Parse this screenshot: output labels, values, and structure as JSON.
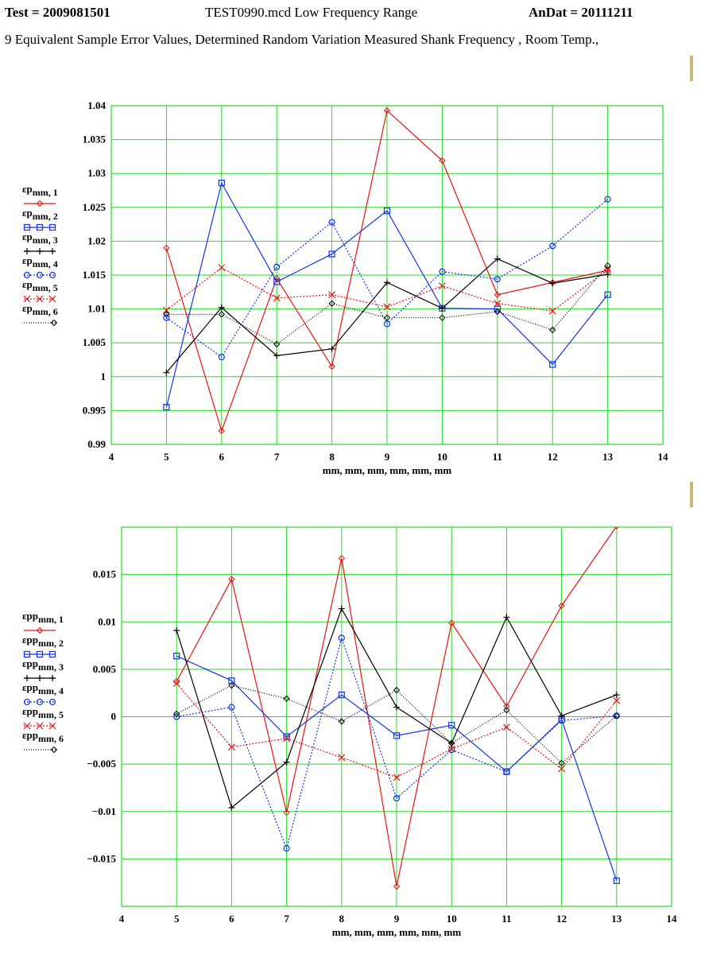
{
  "header": {
    "test": "Test = 2009081501",
    "file": "TEST0990.mcd  Low Frequency Range",
    "andat": "AnDat = 20111211",
    "subtitle": "9 Equivalent Sample Error Values, Determined  Random Variation Measured Shank Frequency , Room Temp.,"
  },
  "colors": {
    "grid": "#22dd22",
    "s1": "#ee1111",
    "s2": "#1133ee",
    "s3": "#000000",
    "s4": "#1133ee",
    "s5": "#ee1111",
    "s6": "#000000"
  },
  "chart_data": [
    {
      "type": "line",
      "xlabel": "mm, mm, mm, mm, mm, mm",
      "xlim": [
        4,
        14
      ],
      "ylim": [
        0.99,
        1.04
      ],
      "xticks": [
        4,
        5,
        6,
        7,
        8,
        9,
        10,
        11,
        12,
        13,
        14
      ],
      "yticks": [
        0.99,
        0.995,
        1,
        1.005,
        1.01,
        1.015,
        1.02,
        1.025,
        1.03,
        1.035,
        1.04
      ],
      "ytick_labels": [
        "0.99",
        "0.995",
        "1",
        "1.005",
        "1.01",
        "1.015",
        "1.02",
        "1.025",
        "1.03",
        "1.035",
        "1.04"
      ],
      "grid": true,
      "legend_placement": "left",
      "x": [
        5,
        6,
        7,
        8,
        9,
        10,
        11,
        12,
        13
      ],
      "series": [
        {
          "name": "εp",
          "sub": "mm, 1",
          "values": [
            1.019,
            0.992,
            1.0145,
            1.0015,
            1.0393,
            1.0319,
            1.0121,
            1.0139,
            1.0157
          ],
          "color": "#ee1111",
          "dash": "",
          "marker": "diamond"
        },
        {
          "name": "εp",
          "sub": "mm, 2",
          "values": [
            0.9955,
            1.0286,
            1.014,
            1.0181,
            1.0245,
            1.0101,
            1.01,
            1.0018,
            1.0121
          ],
          "color": "#1133ee",
          "dash": "",
          "marker": "square"
        },
        {
          "name": "εp",
          "sub": "mm, 3",
          "values": [
            1.0006,
            1.0102,
            1.0031,
            1.0041,
            1.0139,
            1.0101,
            1.0174,
            1.0138,
            1.0151
          ],
          "color": "#000000",
          "dash": "",
          "marker": "plus"
        },
        {
          "name": "εp",
          "sub": "mm, 4",
          "values": [
            1.0087,
            1.0029,
            1.0162,
            1.0228,
            1.0078,
            1.0155,
            1.0144,
            1.0193,
            1.0262
          ],
          "color": "#1133ee",
          "dash": "2,2",
          "marker": "circle"
        },
        {
          "name": "εp",
          "sub": "mm, 5",
          "values": [
            1.0098,
            1.0161,
            1.0116,
            1.0121,
            1.0103,
            1.0134,
            1.0108,
            1.0097,
            1.0158
          ],
          "color": "#ee1111",
          "dash": "2,2",
          "marker": "x"
        },
        {
          "name": "εp",
          "sub": "mm, 6",
          "values": [
            1.0092,
            1.0092,
            1.0048,
            1.0108,
            1.0087,
            1.0087,
            1.0096,
            1.0069,
            1.0164
          ],
          "color": "#000000",
          "dash": "1,2",
          "marker": "diamond"
        }
      ]
    },
    {
      "type": "line",
      "xlabel": "mm, mm, mm, mm, mm, mm",
      "xlim": [
        4,
        14
      ],
      "ylim": [
        -0.02,
        0.02
      ],
      "xticks": [
        4,
        5,
        6,
        7,
        8,
        9,
        10,
        11,
        12,
        13,
        14
      ],
      "yticks": [
        -0.015,
        -0.01,
        -0.005,
        0,
        0.005,
        0.01,
        0.015
      ],
      "ytick_labels": [
        "−0.015",
        "−0.01",
        "−0.005",
        "0",
        "0.005",
        "0.01",
        "0.015"
      ],
      "grid": true,
      "legend_placement": "left",
      "x": [
        5,
        6,
        7,
        8,
        9,
        10,
        11,
        12,
        13
      ],
      "series": [
        {
          "name": "εpp",
          "sub": "mm, 1",
          "values": [
            0.0037,
            0.0145,
            -0.0101,
            0.0167,
            -0.0179,
            0.0099,
            0.0011,
            0.0117,
            0.0201
          ],
          "color": "#ee1111",
          "dash": "",
          "marker": "diamond"
        },
        {
          "name": "εpp",
          "sub": "mm, 2",
          "values": [
            0.0064,
            0.0038,
            -0.0021,
            0.0023,
            -0.002,
            -0.0009,
            -0.0058,
            -0.0003,
            -0.0173
          ],
          "color": "#1133ee",
          "dash": "",
          "marker": "square"
        },
        {
          "name": "εpp",
          "sub": "mm, 3",
          "values": [
            0.0091,
            -0.0096,
            -0.0048,
            0.0114,
            0.001,
            -0.0028,
            0.0105,
            0.0001,
            0.0023
          ],
          "color": "#000000",
          "dash": "",
          "marker": "plus"
        },
        {
          "name": "εpp",
          "sub": "mm, 4",
          "values": [
            0.0,
            0.001,
            -0.0139,
            0.0083,
            -0.0086,
            -0.0035,
            -0.0058,
            -0.0004,
            0.0001
          ],
          "color": "#1133ee",
          "dash": "2,2",
          "marker": "circle"
        },
        {
          "name": "εpp",
          "sub": "mm, 5",
          "values": [
            0.0035,
            -0.0032,
            -0.0023,
            -0.0043,
            -0.0064,
            -0.0034,
            -0.0011,
            -0.0055,
            0.0017
          ],
          "color": "#ee1111",
          "dash": "2,2",
          "marker": "x"
        },
        {
          "name": "εpp",
          "sub": "mm, 6",
          "values": [
            0.0003,
            0.0033,
            0.0019,
            -0.0005,
            0.0028,
            -0.0028,
            0.0007,
            -0.0049,
            0.0001
          ],
          "color": "#000000",
          "dash": "1,2",
          "marker": "diamond"
        }
      ]
    }
  ]
}
